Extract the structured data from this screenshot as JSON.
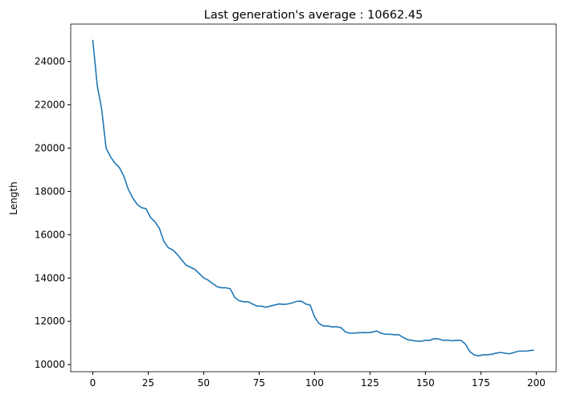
{
  "chart_data": {
    "type": "line",
    "title": "Last generation's average : 10662.45",
    "ylabel": "Length",
    "x": [
      0,
      2,
      4,
      6,
      8,
      10,
      12,
      14,
      16,
      18,
      20,
      22,
      24,
      26,
      28,
      30,
      32,
      34,
      36,
      38,
      40,
      42,
      44,
      46,
      48,
      50,
      52,
      54,
      56,
      58,
      60,
      62,
      64,
      66,
      68,
      70,
      72,
      74,
      76,
      78,
      80,
      82,
      84,
      86,
      88,
      90,
      92,
      94,
      96,
      98,
      100,
      102,
      104,
      106,
      108,
      110,
      112,
      114,
      116,
      118,
      120,
      122,
      124,
      126,
      128,
      130,
      132,
      134,
      136,
      138,
      140,
      142,
      144,
      146,
      148,
      150,
      152,
      154,
      156,
      158,
      160,
      162,
      164,
      166,
      168,
      170,
      172,
      174,
      176,
      178,
      180,
      182,
      184,
      186,
      188,
      190,
      192,
      194,
      196,
      198,
      199
    ],
    "series": [
      {
        "name": "Length",
        "color": "#1f77b4",
        "values": [
          25000,
          22900,
          21800,
          20000,
          19600,
          19300,
          19100,
          18700,
          18100,
          17700,
          17400,
          17250,
          17200,
          16800,
          16600,
          16300,
          15700,
          15400,
          15300,
          15100,
          14850,
          14600,
          14500,
          14400,
          14200,
          14000,
          13900,
          13750,
          13600,
          13550,
          13550,
          13500,
          13100,
          12950,
          12900,
          12900,
          12800,
          12700,
          12700,
          12650,
          12700,
          12750,
          12800,
          12780,
          12800,
          12850,
          12920,
          12930,
          12800,
          12750,
          12200,
          11900,
          11780,
          11780,
          11740,
          11750,
          11700,
          11500,
          11450,
          11450,
          11470,
          11480,
          11470,
          11500,
          11550,
          11450,
          11400,
          11400,
          11380,
          11380,
          11250,
          11150,
          11120,
          11080,
          11080,
          11120,
          11120,
          11200,
          11180,
          11120,
          11130,
          11100,
          11120,
          11120,
          10950,
          10600,
          10450,
          10400,
          10450,
          10450,
          10480,
          10530,
          10560,
          10520,
          10500,
          10560,
          10620,
          10620,
          10630,
          10660,
          10662.45
        ]
      }
    ],
    "xlim": [
      -9.95,
      208.95
    ],
    "xticks": [
      0,
      25,
      50,
      75,
      100,
      125,
      150,
      175,
      200
    ],
    "ylim": [
      9670,
      25730
    ],
    "yticks": [
      10000,
      12000,
      14000,
      16000,
      18000,
      20000,
      22000,
      24000
    ]
  }
}
